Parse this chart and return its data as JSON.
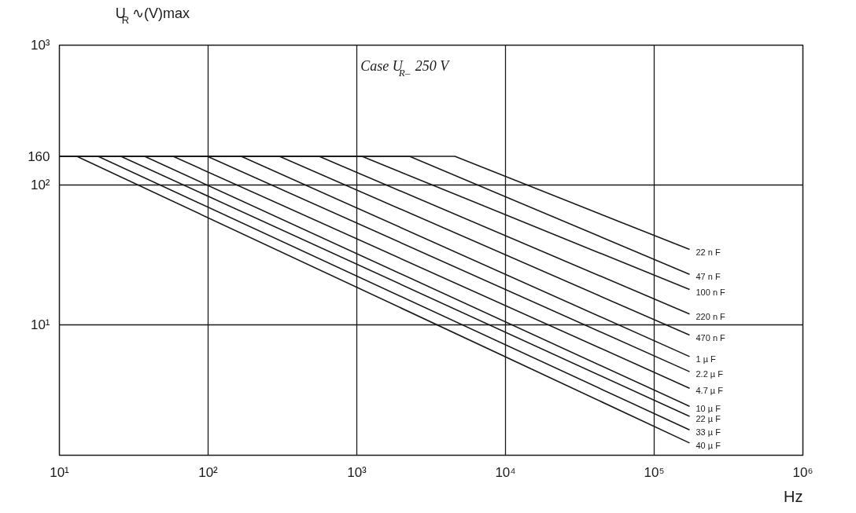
{
  "chart_data": {
    "type": "line",
    "ylabel": "U$_{R}$ ∿(V)max",
    "xlabel": "Hz",
    "log": "xy",
    "grid": true,
    "line_style": "solid",
    "marker": "none",
    "annotations": [
      "Case U$_{R–}$ 250 V"
    ],
    "xlim": [
      10,
      1000000
    ],
    "ylim": [
      1.16,
      1000
    ],
    "xticks": [
      {
        "value": 10,
        "label": "10¹"
      },
      {
        "value": 100,
        "label": "10²"
      },
      {
        "value": 1000,
        "label": "10³"
      },
      {
        "value": 10000,
        "label": "10⁴"
      },
      {
        "value": 100000,
        "label": "10⁵"
      },
      {
        "value": 1000000,
        "label": "10⁶"
      }
    ],
    "yticks": [
      {
        "value": 10,
        "label": "10¹"
      },
      {
        "value": 100,
        "label": "10²"
      },
      160,
      {
        "value": 1000,
        "label": "10³"
      }
    ],
    "series": [
      {
        "name": "22 n F",
        "color": "#1a1a1a",
        "x": [
          10,
          4571,
          173000
        ],
        "values": [
          160,
          160,
          34.5
        ]
      },
      {
        "name": "47 n F",
        "color": "#1a1a1a",
        "x": [
          10,
          2265,
          173000
        ],
        "values": [
          160,
          160,
          22.9
        ]
      },
      {
        "name": "100 n F",
        "color": "#1a1a1a",
        "x": [
          10,
          1084,
          173000
        ],
        "values": [
          160,
          160,
          17.8
        ]
      },
      {
        "name": "220 n F",
        "color": "#1a1a1a",
        "x": [
          10,
          558,
          173000
        ],
        "values": [
          160,
          160,
          11.9
        ]
      },
      {
        "name": "470 n F",
        "color": "#1a1a1a",
        "x": [
          10,
          302,
          173000
        ],
        "values": [
          160,
          160,
          8.4
        ]
      },
      {
        "name": "1 µ F",
        "color": "#1a1a1a",
        "x": [
          10,
          167,
          173000
        ],
        "values": [
          160,
          160,
          5.9
        ]
      },
      {
        "name": "2.2 µ F",
        "color": "#1a1a1a",
        "x": [
          10,
          98.9,
          173000
        ],
        "values": [
          160,
          160,
          4.6
        ]
      },
      {
        "name": "4.7 µ F",
        "color": "#1a1a1a",
        "x": [
          10,
          58.2,
          173000
        ],
        "values": [
          160,
          160,
          3.5
        ]
      },
      {
        "name": "10 µ F",
        "color": "#1a1a1a",
        "x": [
          10,
          37.4,
          173000
        ],
        "values": [
          160,
          160,
          2.6
        ]
      },
      {
        "name": "22 µ F",
        "color": "#1a1a1a",
        "x": [
          10,
          25.9,
          173000
        ],
        "values": [
          160,
          160,
          2.2
        ]
      },
      {
        "name": "33 µ F",
        "color": "#1a1a1a",
        "x": [
          10,
          18.2,
          173000
        ],
        "values": [
          160,
          160,
          1.76
        ]
      },
      {
        "name": "40 µ F",
        "color": "#1a1a1a",
        "x": [
          10,
          13.1,
          173000
        ],
        "values": [
          160,
          160,
          1.42
        ]
      }
    ]
  }
}
